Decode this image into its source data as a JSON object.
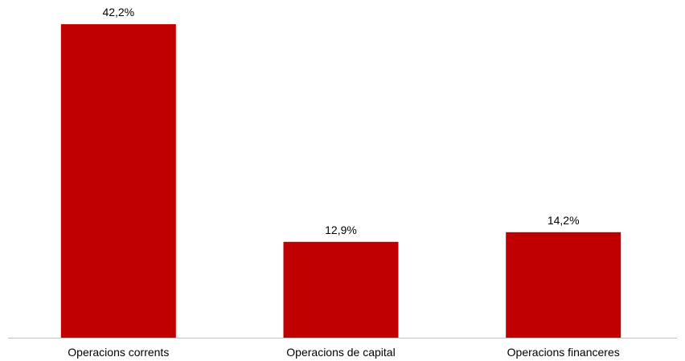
{
  "chart_data": {
    "type": "bar",
    "categories": [
      "Operacions corrents",
      "Operacions de capital",
      "Operacions financeres"
    ],
    "values": [
      42.2,
      12.9,
      14.2
    ],
    "value_labels": [
      "42,2%",
      "12,9%",
      "14,2%"
    ],
    "unit": "%",
    "title": "",
    "xlabel": "",
    "ylabel": "",
    "ylim": [
      0,
      45
    ],
    "grid": false,
    "legend": "none",
    "bar_color": "#c00000",
    "axis_color": "#bfbfbf"
  }
}
